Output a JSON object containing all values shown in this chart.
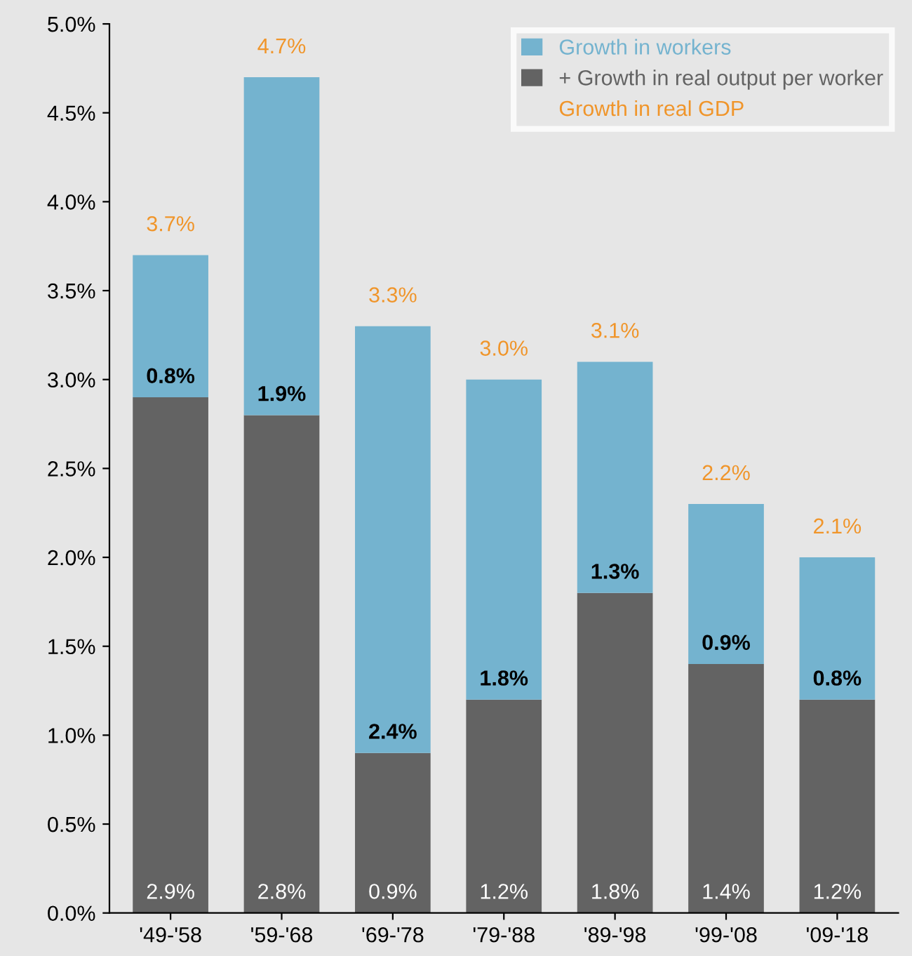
{
  "chart_data": {
    "type": "bar",
    "stacked": true,
    "categories": [
      "'49-'58",
      "'59-'68",
      "'69-'78",
      "'79-'88",
      "'89-'98",
      "'99-'08",
      "'09-'18"
    ],
    "series": [
      {
        "name": "+ Growth in real output per worker",
        "color": "#636363",
        "values": [
          2.9,
          2.8,
          0.9,
          1.2,
          1.8,
          1.4,
          1.2
        ],
        "value_labels": [
          "2.9%",
          "2.8%",
          "0.9%",
          "1.2%",
          "1.8%",
          "1.4%",
          "1.2%"
        ]
      },
      {
        "name": "Growth in workers",
        "color": "#74b3cf",
        "values": [
          0.8,
          1.9,
          2.4,
          1.8,
          1.3,
          0.9,
          0.8
        ],
        "value_labels": [
          "0.8%",
          "1.9%",
          "2.4%",
          "1.8%",
          "1.3%",
          "0.9%",
          "0.8%"
        ]
      }
    ],
    "totals": [
      "3.7%",
      "4.7%",
      "3.3%",
      "3.0%",
      "3.1%",
      "2.2%",
      "2.1%"
    ],
    "annotations": [
      "Growth in real GDP"
    ],
    "ylim": [
      0,
      5
    ],
    "yticks": [
      {
        "value": 0,
        "label": "0.0%"
      },
      {
        "value": 0.5,
        "label": "0.5%"
      },
      {
        "value": 1,
        "label": "1.0%"
      },
      {
        "value": 1.5,
        "label": "1.5%"
      },
      {
        "value": 2,
        "label": "2.0%"
      },
      {
        "value": 2.5,
        "label": "2.5%"
      },
      {
        "value": 3,
        "label": "3.0%"
      },
      {
        "value": 3.5,
        "label": "3.5%"
      },
      {
        "value": 4,
        "label": "4.0%"
      },
      {
        "value": 4.5,
        "label": "4.5%"
      },
      {
        "value": 5,
        "label": "5.0%"
      }
    ],
    "legend": "top right",
    "grid": false
  }
}
